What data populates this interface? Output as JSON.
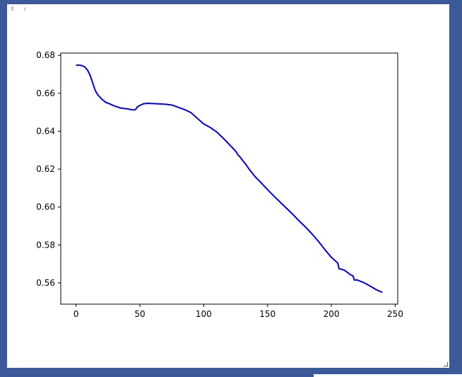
{
  "window": {
    "close_label": "X",
    "pin_label": "⇕"
  },
  "chart_data": {
    "type": "line",
    "title": "",
    "xlabel": "",
    "ylabel": "",
    "xlim": [
      -12,
      252
    ],
    "ylim": [
      0.5488,
      0.6812
    ],
    "xticks": [
      0,
      50,
      100,
      150,
      200,
      250
    ],
    "xtick_labels": [
      "0",
      "50",
      "100",
      "150",
      "200",
      "250"
    ],
    "yticks": [
      0.56,
      0.58,
      0.6,
      0.62,
      0.64,
      0.66,
      0.68
    ],
    "ytick_labels": [
      "0.56",
      "0.58",
      "0.60",
      "0.62",
      "0.64",
      "0.66",
      "0.68"
    ],
    "grid": false,
    "series": [
      {
        "name": "line",
        "color": "#0000e6",
        "x": [
          0,
          3,
          5,
          7,
          9,
          11,
          13,
          15,
          17,
          20,
          23,
          26,
          30,
          35,
          40,
          44,
          46,
          47,
          48,
          50,
          53,
          56,
          60,
          65,
          70,
          75,
          80,
          85,
          90,
          95,
          100,
          105,
          110,
          115,
          120,
          125,
          127,
          128,
          130,
          133,
          136,
          140,
          145,
          150,
          155,
          160,
          165,
          170,
          175,
          180,
          185,
          190,
          195,
          200,
          205,
          206,
          210,
          215,
          217,
          218,
          220,
          225,
          230,
          235,
          240
        ],
        "y": [
          0.6748,
          0.6748,
          0.6745,
          0.6738,
          0.6722,
          0.6695,
          0.6655,
          0.6615,
          0.6592,
          0.657,
          0.6553,
          0.6545,
          0.6533,
          0.6522,
          0.6518,
          0.6513,
          0.6512,
          0.6518,
          0.6528,
          0.6536,
          0.6545,
          0.6547,
          0.6546,
          0.6544,
          0.6542,
          0.6538,
          0.6526,
          0.6514,
          0.6498,
          0.6468,
          0.6438,
          0.642,
          0.6397,
          0.6365,
          0.633,
          0.6295,
          0.6273,
          0.6268,
          0.625,
          0.6225,
          0.6196,
          0.6162,
          0.6128,
          0.6092,
          0.6058,
          0.6025,
          0.5993,
          0.596,
          0.5925,
          0.5893,
          0.5857,
          0.5818,
          0.5775,
          0.5735,
          0.5705,
          0.5675,
          0.5668,
          0.5643,
          0.5637,
          0.5615,
          0.5616,
          0.5603,
          0.5585,
          0.5565,
          0.555
        ]
      }
    ]
  }
}
